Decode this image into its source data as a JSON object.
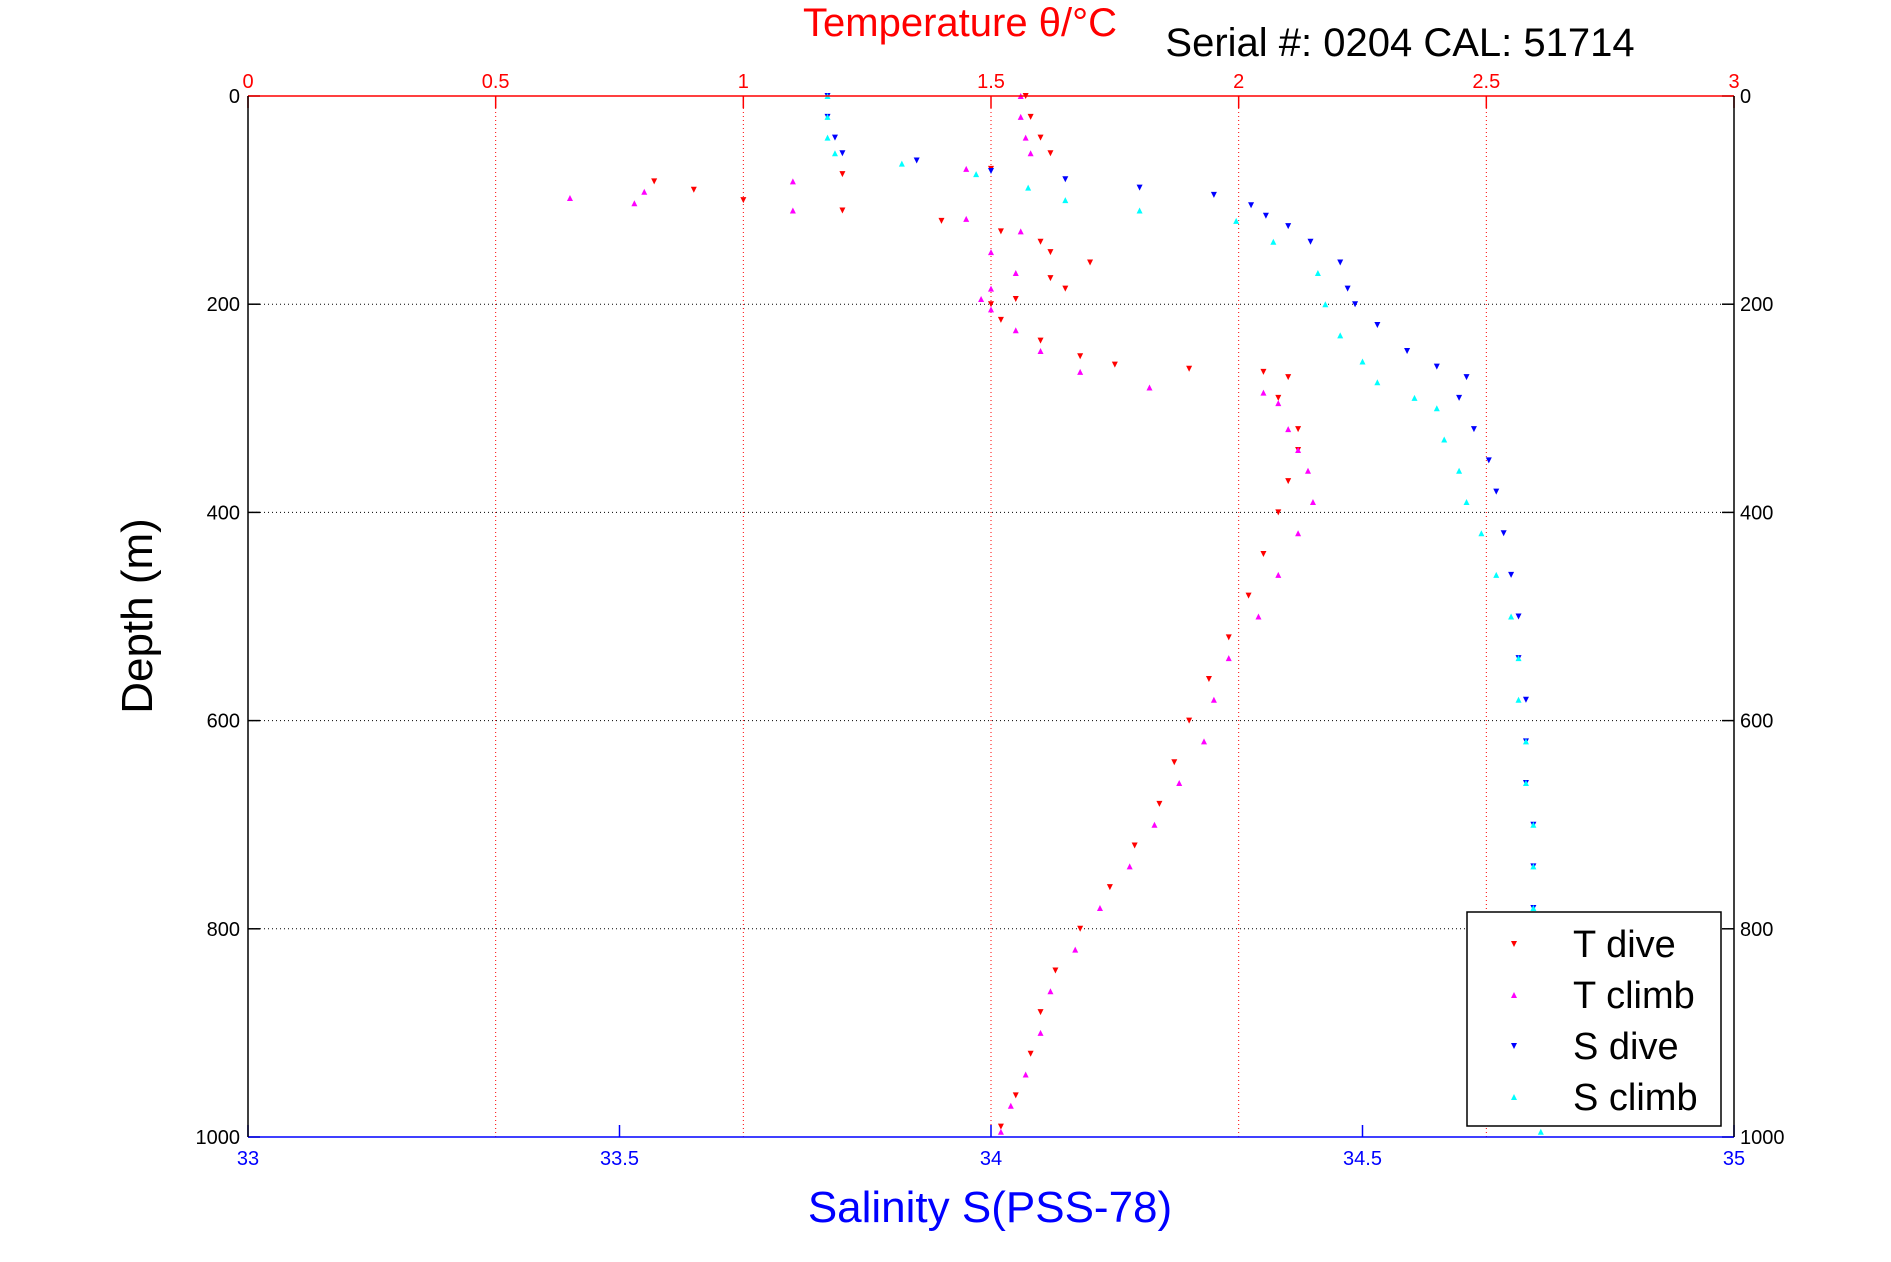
{
  "chart_data": {
    "type": "scatter",
    "title": "Temperature θ/°C",
    "subtitle": "Serial #: 0204  CAL: 51714",
    "xlabel": "Salinity S(PSS-78)",
    "ylabel": "Depth (m)",
    "temperature_axis": {
      "range": [
        0,
        3
      ],
      "ticks": [
        0,
        0.5,
        1,
        1.5,
        2,
        2.5,
        3
      ],
      "tick_labels": [
        "0",
        "0.5",
        "1",
        "1.5",
        "2",
        "2.5",
        "3"
      ],
      "color": "#ff0000"
    },
    "salinity_axis": {
      "range": [
        33,
        35
      ],
      "ticks": [
        33,
        33.5,
        34,
        34.5,
        35
      ],
      "tick_labels": [
        "33",
        "33.5",
        "34",
        "34.5",
        "35"
      ],
      "color": "#0000ff"
    },
    "depth_axis": {
      "range": [
        0,
        1000
      ],
      "reversed": true,
      "ticks": [
        0,
        200,
        400,
        600,
        800,
        1000
      ],
      "tick_labels": [
        "0",
        "200",
        "400",
        "600",
        "800",
        "1000"
      ]
    },
    "grid": true,
    "legend_position": "bottom-right",
    "series": [
      {
        "name": "T dive",
        "axis": "temperature",
        "color": "#ff0000",
        "marker": "triangle-down",
        "points": [
          [
            1.57,
            0
          ],
          [
            1.58,
            20
          ],
          [
            1.6,
            40
          ],
          [
            1.62,
            55
          ],
          [
            1.5,
            70
          ],
          [
            1.2,
            75
          ],
          [
            0.82,
            82
          ],
          [
            0.9,
            90
          ],
          [
            1.0,
            100
          ],
          [
            1.2,
            110
          ],
          [
            1.4,
            120
          ],
          [
            1.52,
            130
          ],
          [
            1.6,
            140
          ],
          [
            1.62,
            150
          ],
          [
            1.7,
            160
          ],
          [
            1.62,
            175
          ],
          [
            1.65,
            185
          ],
          [
            1.55,
            195
          ],
          [
            1.5,
            200
          ],
          [
            1.52,
            215
          ],
          [
            1.6,
            235
          ],
          [
            1.68,
            250
          ],
          [
            1.75,
            258
          ],
          [
            1.9,
            262
          ],
          [
            2.05,
            265
          ],
          [
            2.1,
            270
          ],
          [
            2.08,
            290
          ],
          [
            2.12,
            320
          ],
          [
            2.12,
            340
          ],
          [
            2.1,
            370
          ],
          [
            2.08,
            400
          ],
          [
            2.05,
            440
          ],
          [
            2.02,
            480
          ],
          [
            1.98,
            520
          ],
          [
            1.94,
            560
          ],
          [
            1.9,
            600
          ],
          [
            1.87,
            640
          ],
          [
            1.84,
            680
          ],
          [
            1.79,
            720
          ],
          [
            1.74,
            760
          ],
          [
            1.68,
            800
          ],
          [
            1.63,
            840
          ],
          [
            1.6,
            880
          ],
          [
            1.58,
            920
          ],
          [
            1.55,
            960
          ],
          [
            1.52,
            990
          ]
        ]
      },
      {
        "name": "T climb",
        "axis": "temperature",
        "color": "#ff00ff",
        "marker": "triangle-up",
        "points": [
          [
            1.56,
            0
          ],
          [
            1.56,
            20
          ],
          [
            1.57,
            40
          ],
          [
            1.58,
            55
          ],
          [
            1.45,
            70
          ],
          [
            1.1,
            82
          ],
          [
            0.8,
            92
          ],
          [
            0.65,
            98
          ],
          [
            0.78,
            103
          ],
          [
            1.1,
            110
          ],
          [
            1.45,
            118
          ],
          [
            1.56,
            130
          ],
          [
            1.5,
            150
          ],
          [
            1.55,
            170
          ],
          [
            1.5,
            185
          ],
          [
            1.48,
            195
          ],
          [
            1.5,
            205
          ],
          [
            1.55,
            225
          ],
          [
            1.6,
            245
          ],
          [
            1.68,
            265
          ],
          [
            1.82,
            280
          ],
          [
            2.05,
            285
          ],
          [
            2.08,
            295
          ],
          [
            2.1,
            320
          ],
          [
            2.12,
            340
          ],
          [
            2.14,
            360
          ],
          [
            2.15,
            390
          ],
          [
            2.12,
            420
          ],
          [
            2.08,
            460
          ],
          [
            2.04,
            500
          ],
          [
            1.98,
            540
          ],
          [
            1.95,
            580
          ],
          [
            1.93,
            620
          ],
          [
            1.88,
            660
          ],
          [
            1.83,
            700
          ],
          [
            1.78,
            740
          ],
          [
            1.72,
            780
          ],
          [
            1.67,
            820
          ],
          [
            1.62,
            860
          ],
          [
            1.6,
            900
          ],
          [
            1.57,
            940
          ],
          [
            1.54,
            970
          ],
          [
            1.52,
            995
          ]
        ]
      },
      {
        "name": "S dive",
        "axis": "salinity",
        "color": "#0000ff",
        "marker": "triangle-down",
        "points": [
          [
            33.78,
            0
          ],
          [
            33.78,
            20
          ],
          [
            33.79,
            40
          ],
          [
            33.8,
            55
          ],
          [
            33.9,
            62
          ],
          [
            34.0,
            72
          ],
          [
            34.1,
            80
          ],
          [
            34.2,
            88
          ],
          [
            34.3,
            95
          ],
          [
            34.35,
            105
          ],
          [
            34.37,
            115
          ],
          [
            34.4,
            125
          ],
          [
            34.43,
            140
          ],
          [
            34.47,
            160
          ],
          [
            34.48,
            185
          ],
          [
            34.49,
            200
          ],
          [
            34.52,
            220
          ],
          [
            34.56,
            245
          ],
          [
            34.6,
            260
          ],
          [
            34.64,
            270
          ],
          [
            34.63,
            290
          ],
          [
            34.65,
            320
          ],
          [
            34.67,
            350
          ],
          [
            34.68,
            380
          ],
          [
            34.69,
            420
          ],
          [
            34.7,
            460
          ],
          [
            34.71,
            500
          ],
          [
            34.71,
            540
          ],
          [
            34.72,
            580
          ],
          [
            34.72,
            620
          ],
          [
            34.72,
            660
          ],
          [
            34.73,
            700
          ],
          [
            34.73,
            740
          ],
          [
            34.73,
            780
          ]
        ]
      },
      {
        "name": "S climb",
        "axis": "salinity",
        "color": "#00ffff",
        "marker": "triangle-up",
        "points": [
          [
            33.78,
            0
          ],
          [
            33.78,
            20
          ],
          [
            33.78,
            40
          ],
          [
            33.79,
            55
          ],
          [
            33.88,
            65
          ],
          [
            33.98,
            75
          ],
          [
            34.05,
            88
          ],
          [
            34.1,
            100
          ],
          [
            34.2,
            110
          ],
          [
            34.33,
            120
          ],
          [
            34.38,
            140
          ],
          [
            34.44,
            170
          ],
          [
            34.45,
            200
          ],
          [
            34.47,
            230
          ],
          [
            34.5,
            255
          ],
          [
            34.52,
            275
          ],
          [
            34.57,
            290
          ],
          [
            34.6,
            300
          ],
          [
            34.61,
            330
          ],
          [
            34.63,
            360
          ],
          [
            34.64,
            390
          ],
          [
            34.66,
            420
          ],
          [
            34.68,
            460
          ],
          [
            34.7,
            500
          ],
          [
            34.71,
            540
          ],
          [
            34.71,
            580
          ],
          [
            34.72,
            620
          ],
          [
            34.72,
            660
          ],
          [
            34.73,
            700
          ],
          [
            34.73,
            740
          ],
          [
            34.73,
            780
          ],
          [
            34.73,
            820
          ],
          [
            34.74,
            860
          ],
          [
            34.74,
            900
          ],
          [
            34.74,
            940
          ],
          [
            34.74,
            980
          ],
          [
            34.74,
            995
          ]
        ]
      }
    ]
  }
}
